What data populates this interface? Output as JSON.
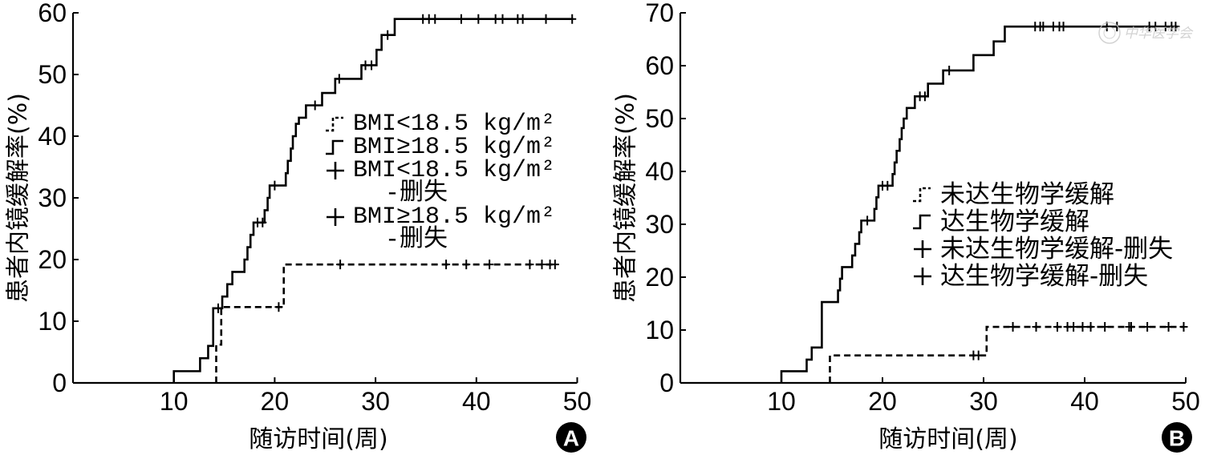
{
  "colors": {
    "ink": "#000000",
    "background": "#ffffff",
    "badge_fill": "#000000",
    "badge_text": "#ffffff",
    "watermark": "#c8c8c8"
  },
  "watermark": {
    "text": "中华医学会"
  },
  "chart_data": [
    {
      "panel_label": "A",
      "type": "line",
      "line_shape": "step",
      "xlabel": "随访时间(周)",
      "ylabel": "患者内镜缓解率(%)",
      "xlim": [
        0,
        50
      ],
      "ylim": [
        0,
        60
      ],
      "xticks": [
        10,
        20,
        30,
        40,
        50
      ],
      "yticks": [
        0,
        10,
        20,
        30,
        40,
        50,
        60
      ],
      "grid": false,
      "legend_position": "right",
      "censored_suffix": "-删失",
      "series": [
        {
          "name": "BMI<18.5 kg/m²",
          "line_style": "dashed",
          "events": [
            [
              14.2,
              6.2
            ],
            [
              14.7,
              12.3
            ],
            [
              20.9,
              19.2
            ]
          ],
          "x_end": 47.9,
          "censored_x": [
            20.4,
            26.5,
            37.0,
            39.0,
            41.3,
            45.3,
            46.5,
            47.3,
            47.8
          ]
        },
        {
          "name": "BMI≥18.5 kg/m²",
          "line_style": "solid",
          "events": [
            [
              10.0,
              1.9
            ],
            [
              12.6,
              4.0
            ],
            [
              13.4,
              6.0
            ],
            [
              13.9,
              12.1
            ],
            [
              14.8,
              14.0
            ],
            [
              15.3,
              16.0
            ],
            [
              15.8,
              18.0
            ],
            [
              17.0,
              20.0
            ],
            [
              17.3,
              22.0
            ],
            [
              17.6,
              24.0
            ],
            [
              17.9,
              26.0
            ],
            [
              19.0,
              28.0
            ],
            [
              19.3,
              30.0
            ],
            [
              19.5,
              32.0
            ],
            [
              21.1,
              34.0
            ],
            [
              21.3,
              36.0
            ],
            [
              21.6,
              38.0
            ],
            [
              21.8,
              40.0
            ],
            [
              22.1,
              42.0
            ],
            [
              22.4,
              43.0
            ],
            [
              23.1,
              45.0
            ],
            [
              24.7,
              47.0
            ],
            [
              26.0,
              49.3
            ],
            [
              28.6,
              51.5
            ],
            [
              30.1,
              54.0
            ],
            [
              30.6,
              56.4
            ],
            [
              31.9,
              59.0
            ]
          ],
          "x_end": 49.6,
          "censored_x": [
            14.4,
            18.3,
            18.8,
            20.0,
            24.0,
            26.4,
            29.0,
            29.6,
            31.2,
            34.7,
            35.3,
            35.9,
            38.5,
            40.2,
            41.9,
            42.6,
            44.1,
            44.6,
            46.9,
            49.5
          ]
        }
      ]
    },
    {
      "panel_label": "B",
      "type": "line",
      "line_shape": "step",
      "xlabel": "随访时间(周)",
      "ylabel": "患者内镜缓解率(%)",
      "xlim": [
        0,
        50
      ],
      "ylim": [
        0,
        70
      ],
      "xticks": [
        10,
        20,
        30,
        40,
        50
      ],
      "yticks": [
        0,
        10,
        20,
        30,
        40,
        50,
        60,
        70
      ],
      "grid": false,
      "legend_position": "right",
      "censored_suffix": "-删失",
      "series": [
        {
          "name": "未达生物学缓解",
          "line_style": "dashed",
          "events": [
            [
              14.8,
              5.2
            ],
            [
              30.3,
              10.6
            ]
          ],
          "x_end": 49.8,
          "censored_x": [
            29.0,
            29.5,
            32.9,
            35.2,
            37.3,
            38.3,
            38.9,
            39.8,
            40.6,
            42.0,
            44.4,
            44.6,
            46.2,
            48.3,
            49.8
          ]
        },
        {
          "name": "达生物学缓解",
          "line_style": "solid",
          "events": [
            [
              10.0,
              2.2
            ],
            [
              12.5,
              4.4
            ],
            [
              13.0,
              6.7
            ],
            [
              14.0,
              15.3
            ],
            [
              15.6,
              17.5
            ],
            [
              15.8,
              19.7
            ],
            [
              16.0,
              21.9
            ],
            [
              17.0,
              24.1
            ],
            [
              17.3,
              26.3
            ],
            [
              17.7,
              28.5
            ],
            [
              17.9,
              30.7
            ],
            [
              19.2,
              32.9
            ],
            [
              19.4,
              35.1
            ],
            [
              19.6,
              37.3
            ],
            [
              21.0,
              39.5
            ],
            [
              21.2,
              41.7
            ],
            [
              21.4,
              43.9
            ],
            [
              21.7,
              46.1
            ],
            [
              21.9,
              48.2
            ],
            [
              22.1,
              50.0
            ],
            [
              22.4,
              52.0
            ],
            [
              23.2,
              54.2
            ],
            [
              24.5,
              56.6
            ],
            [
              26.0,
              59.1
            ],
            [
              29.0,
              62.0
            ],
            [
              31.0,
              64.6
            ],
            [
              32.1,
              67.4
            ]
          ],
          "x_end": 49.2,
          "censored_x": [
            18.5,
            20.0,
            20.5,
            23.7,
            24.2,
            26.6,
            35.1,
            35.6,
            35.9,
            36.9,
            37.5,
            37.9,
            42.2,
            43.2,
            46.4,
            47.0,
            48.0,
            48.6,
            49.0
          ]
        }
      ]
    }
  ]
}
